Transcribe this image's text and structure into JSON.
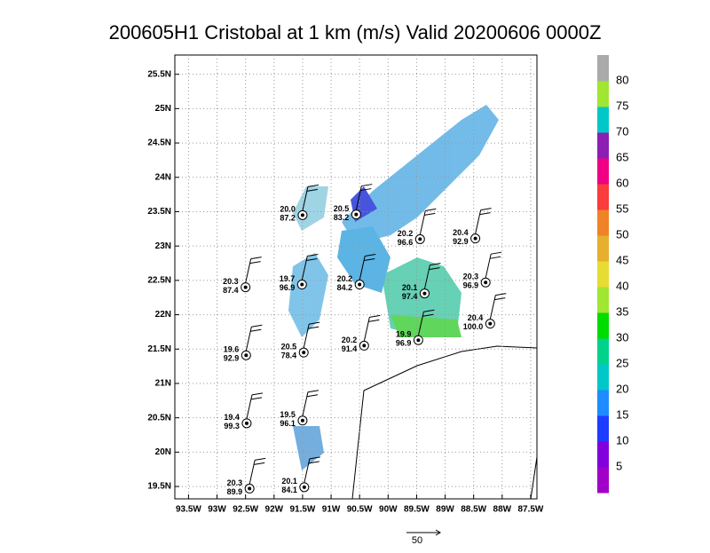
{
  "map": {
    "title": "200605H1 Cristobal at 1 km (m/s) Valid 20200606 0000Z",
    "xlim": [
      -93.74,
      -87.39
    ],
    "ylim": [
      19.32,
      25.78
    ],
    "xticks": [
      {
        "value": -93.5,
        "label": "93.5W"
      },
      {
        "value": -93,
        "label": "93W"
      },
      {
        "value": -92.5,
        "label": "92.5W"
      },
      {
        "value": -92,
        "label": "92W"
      },
      {
        "value": -91.5,
        "label": "91.5W"
      },
      {
        "value": -91,
        "label": "91W"
      },
      {
        "value": -90.5,
        "label": "90.5W"
      },
      {
        "value": -90,
        "label": "90W"
      },
      {
        "value": -89.5,
        "label": "89.5W"
      },
      {
        "value": -89,
        "label": "89W"
      },
      {
        "value": -88.5,
        "label": "88.5W"
      },
      {
        "value": -88,
        "label": "88W"
      },
      {
        "value": -87.5,
        "label": "87.5W"
      }
    ],
    "yticks": [
      {
        "value": 19.5,
        "label": "19.5N"
      },
      {
        "value": 20,
        "label": "20N"
      },
      {
        "value": 20.5,
        "label": "20.5N"
      },
      {
        "value": 21,
        "label": "21N"
      },
      {
        "value": 21.5,
        "label": "21.5N"
      },
      {
        "value": 22,
        "label": "22N"
      },
      {
        "value": 22.5,
        "label": "22.5N"
      },
      {
        "value": 23,
        "label": "23N"
      },
      {
        "value": 23.5,
        "label": "23.5N"
      },
      {
        "value": 24,
        "label": "24N"
      },
      {
        "value": 24.5,
        "label": "24.5N"
      },
      {
        "value": 25,
        "label": "25N"
      },
      {
        "value": 25.5,
        "label": "25.5N"
      }
    ],
    "grid": true,
    "stations": [
      {
        "lon": -91.5,
        "lat": 23.45,
        "top": "20.0",
        "bottom": "87.2"
      },
      {
        "lon": -90.56,
        "lat": 23.46,
        "top": "20.5",
        "bottom": "83.2"
      },
      {
        "lon": -89.44,
        "lat": 23.1,
        "top": "20.2",
        "bottom": "96.6"
      },
      {
        "lon": -88.47,
        "lat": 23.11,
        "top": "20.4",
        "bottom": "92.9"
      },
      {
        "lon": -92.5,
        "lat": 22.4,
        "top": "20.3",
        "bottom": "87.4"
      },
      {
        "lon": -91.51,
        "lat": 22.44,
        "top": "19.7",
        "bottom": "96.9"
      },
      {
        "lon": -90.5,
        "lat": 22.44,
        "top": "20.2",
        "bottom": "84.2"
      },
      {
        "lon": -89.36,
        "lat": 22.31,
        "top": "20.1",
        "bottom": "97.4"
      },
      {
        "lon": -88.29,
        "lat": 22.47,
        "top": "20.3",
        "bottom": "96.9"
      },
      {
        "lon": -88.21,
        "lat": 21.87,
        "top": "20.4",
        "bottom": "100.0"
      },
      {
        "lon": -89.47,
        "lat": 21.63,
        "top": "19.9",
        "bottom": "96.9"
      },
      {
        "lon": -90.42,
        "lat": 21.55,
        "top": "20.2",
        "bottom": "91.4"
      },
      {
        "lon": -91.48,
        "lat": 21.45,
        "top": "20.5",
        "bottom": "78.4"
      },
      {
        "lon": -92.49,
        "lat": 21.41,
        "top": "19.6",
        "bottom": "92.9"
      },
      {
        "lon": -92.48,
        "lat": 20.42,
        "top": "19.4",
        "bottom": "99.3"
      },
      {
        "lon": -91.5,
        "lat": 20.46,
        "top": "19.5",
        "bottom": "96.1"
      },
      {
        "lon": -92.43,
        "lat": 19.47,
        "top": "20.3",
        "bottom": "89.9"
      },
      {
        "lon": -91.47,
        "lat": 19.49,
        "top": "20.1",
        "bottom": "84.1"
      }
    ],
    "colorbar": {
      "levels": [
        5,
        10,
        15,
        20,
        25,
        30,
        35,
        40,
        45,
        50,
        55,
        60,
        65,
        70,
        75,
        80
      ],
      "colors": [
        "#a000c8",
        "#8200dc",
        "#1e3cff",
        "#1e8cff",
        "#00c8c8",
        "#00d28c",
        "#00dc00",
        "#a0e632",
        "#e6dc32",
        "#e6af2d",
        "#f08228",
        "#fa3c3c",
        "#f00082",
        "#8c1eb4",
        "#00c8c8",
        "#a0e632",
        "#aaaaaa"
      ]
    },
    "scale_label": 50
  }
}
